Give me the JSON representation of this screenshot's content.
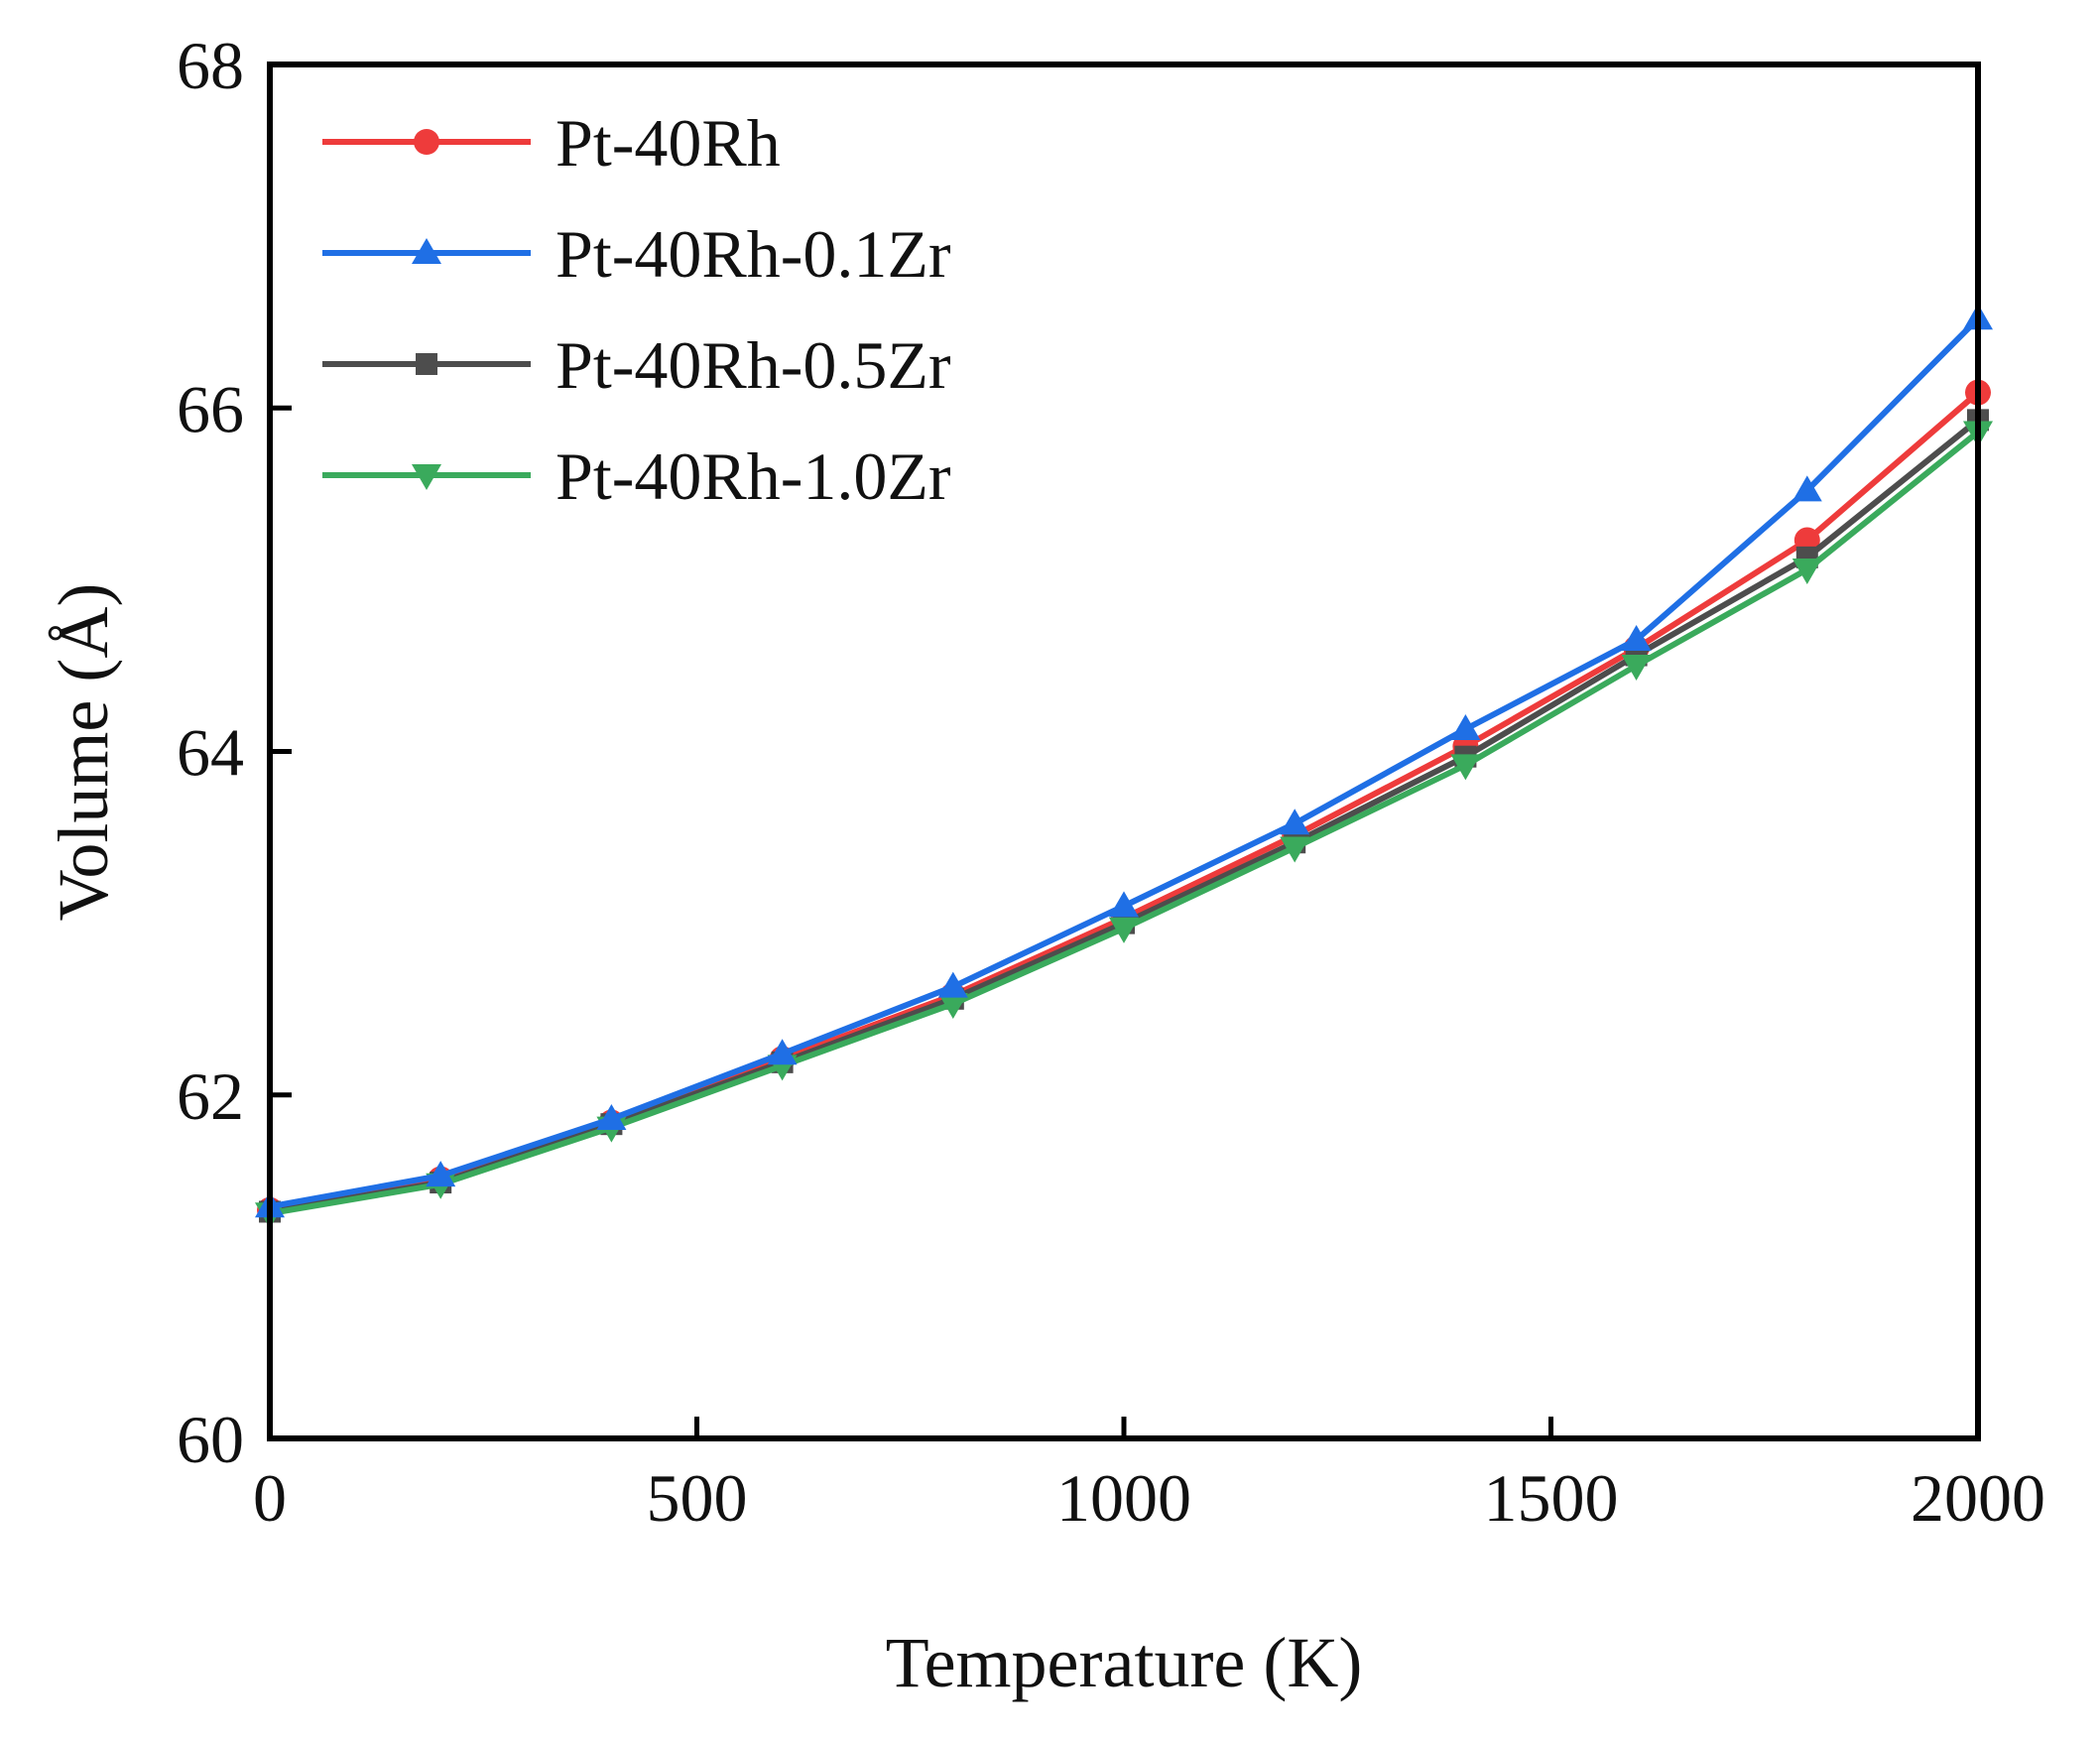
{
  "chart_data": {
    "type": "line",
    "title": "",
    "xlabel": "Temperature (K)",
    "ylabel": "Volume (Å)",
    "xlim": [
      0,
      2000
    ],
    "ylim": [
      60,
      68
    ],
    "xticks": [
      0,
      500,
      1000,
      1500,
      2000
    ],
    "yticks": [
      60,
      62,
      64,
      66,
      68
    ],
    "legend_position": "top-left",
    "grid": false,
    "x": [
      0,
      200,
      400,
      600,
      800,
      1000,
      1200,
      1400,
      1600,
      1800,
      2000
    ],
    "series": [
      {
        "name": "Pt-40Rh",
        "color": "#ee3b3b",
        "marker": "circle",
        "values": [
          61.33,
          61.51,
          61.84,
          62.21,
          62.58,
          63.03,
          63.51,
          64.03,
          64.6,
          65.23,
          66.09
        ]
      },
      {
        "name": "Pt-40Rh-0.1Zr",
        "color": "#1f6fe5",
        "marker": "triangle-up",
        "values": [
          61.35,
          61.53,
          61.86,
          62.24,
          62.63,
          63.1,
          63.58,
          64.13,
          64.65,
          65.52,
          66.52
        ]
      },
      {
        "name": "Pt-40Rh-0.5Zr",
        "color": "#4d4d4d",
        "marker": "square",
        "values": [
          61.32,
          61.49,
          61.83,
          62.19,
          62.56,
          63.0,
          63.47,
          63.97,
          64.56,
          65.13,
          65.93
        ]
      },
      {
        "name": "Pt-40Rh-1.0Zr",
        "color": "#3aaa5c",
        "marker": "triangle-down",
        "values": [
          61.31,
          61.48,
          61.81,
          62.17,
          62.53,
          62.97,
          63.44,
          63.92,
          64.5,
          65.06,
          65.86
        ]
      }
    ]
  }
}
